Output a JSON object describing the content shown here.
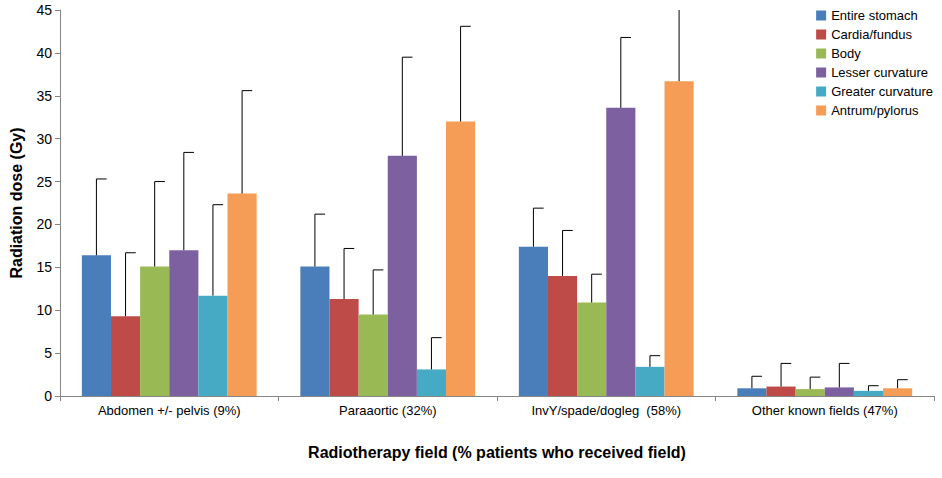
{
  "chart_data": {
    "type": "bar",
    "x_label": "Radiotherapy field (% patients who received field)",
    "y_label": "Radiation dose (Gy)",
    "categories": [
      "Abdomen +/- pelvis (9%)",
      "Paraaortic (32%)",
      "InvY/spade/dogleg  (58%)",
      "Other known fields (47%)"
    ],
    "series": [
      {
        "name": "Entire stomach",
        "color": "#4a7ebb",
        "values": [
          16.4,
          15.1,
          17.4,
          0.9
        ],
        "errors": [
          8.9,
          6.1,
          4.5,
          1.4
        ]
      },
      {
        "name": "Cardia/fundus",
        "color": "#be4b48",
        "values": [
          9.3,
          11.3,
          14.0,
          1.1
        ],
        "errors": [
          7.4,
          5.9,
          5.3,
          2.7
        ]
      },
      {
        "name": "Body",
        "color": "#98b954",
        "values": [
          15.1,
          9.5,
          10.9,
          0.8
        ],
        "errors": [
          9.9,
          5.2,
          3.3,
          1.4
        ]
      },
      {
        "name": "Lesser curvature",
        "color": "#7d60a0",
        "values": [
          17.0,
          28.0,
          33.6,
          1.0
        ],
        "errors": [
          11.4,
          11.5,
          8.2,
          2.8
        ]
      },
      {
        "name": "Greater curvature",
        "color": "#46aac5",
        "values": [
          11.7,
          3.1,
          3.4,
          0.6
        ],
        "errors": [
          10.6,
          3.7,
          1.3,
          0.6
        ]
      },
      {
        "name": "Antrum/pylorus",
        "color": "#f59d56",
        "values": [
          23.6,
          32.0,
          36.7,
          0.9
        ],
        "errors": [
          12.0,
          11.1,
          9.5,
          1.0
        ]
      }
    ],
    "ylim": [
      0,
      45
    ],
    "yticks": [
      0,
      5,
      10,
      15,
      20,
      25,
      30,
      35,
      40,
      45
    ],
    "grid": false,
    "legend": "top-right"
  }
}
